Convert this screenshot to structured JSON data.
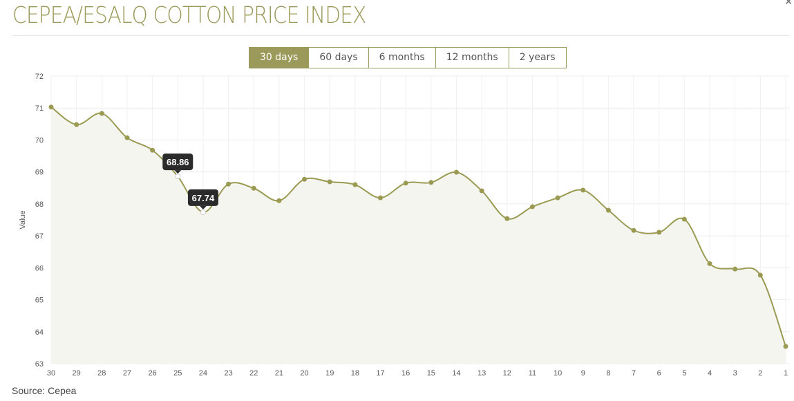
{
  "title": "CEPEA/ESALQ COTTON PRICE INDEX",
  "close_icon": "close-icon",
  "tabs": [
    {
      "label": "30 days",
      "active": true
    },
    {
      "label": "60 days"
    },
    {
      "label": "6 months"
    },
    {
      "label": "12 months"
    },
    {
      "label": "2 years"
    }
  ],
  "source": "Source: Cepea",
  "colors": {
    "accent": "#9c9a5a",
    "line": "#9a9a52",
    "area": "#f5f5f0",
    "tooltip": "#2b2b2b"
  },
  "chart_data": {
    "type": "area",
    "ylabel": "Value",
    "ylim": [
      63,
      72
    ],
    "yticks": [
      63,
      64,
      65,
      66,
      67,
      68,
      69,
      70,
      71,
      72
    ],
    "grid": true,
    "categories": [
      "30",
      "29",
      "28",
      "27",
      "26",
      "25",
      "24",
      "23",
      "22",
      "21",
      "20",
      "19",
      "18",
      "17",
      "16",
      "15",
      "14",
      "13",
      "12",
      "11",
      "10",
      "9",
      "8",
      "7",
      "6",
      "5",
      "4",
      "3",
      "2",
      "1"
    ],
    "values": [
      71.03,
      70.48,
      70.83,
      70.07,
      69.68,
      68.86,
      67.74,
      68.62,
      68.49,
      68.1,
      68.77,
      68.69,
      68.6,
      68.19,
      68.65,
      68.67,
      68.99,
      68.41,
      67.54,
      67.91,
      68.19,
      68.43,
      67.8,
      67.17,
      67.11,
      67.52,
      66.13,
      65.96,
      65.77,
      63.54
    ],
    "tooltips": [
      {
        "category": "25",
        "label": "68.86"
      },
      {
        "category": "24",
        "label": "67.74"
      }
    ]
  }
}
